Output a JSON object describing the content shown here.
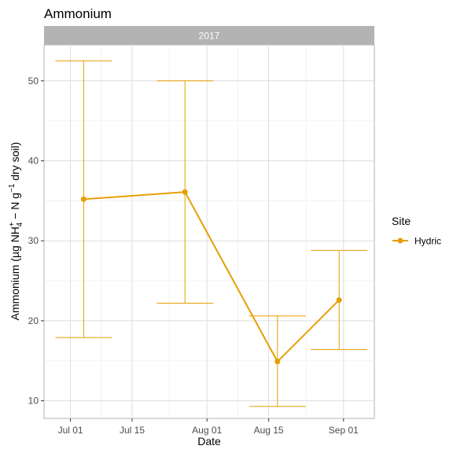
{
  "chart_data": {
    "type": "line",
    "title": "Ammonium",
    "facet": "2017",
    "xlabel": "Date",
    "ylabel": {
      "prefix": "Ammonium (µg NH",
      "nh_sup": "+",
      "nh_sub": "4",
      "mid": " − N g",
      "g_sup": "−1",
      "suffix": " dry soil)"
    },
    "x_axis": {
      "type": "date",
      "range": [
        "2017-06-25",
        "2017-09-08"
      ],
      "ticks": [
        {
          "date": "2017-07-01",
          "label": "Jul 01"
        },
        {
          "date": "2017-07-15",
          "label": "Jul 15"
        },
        {
          "date": "2017-08-01",
          "label": "Aug 01"
        },
        {
          "date": "2017-08-15",
          "label": "Aug 15"
        },
        {
          "date": "2017-09-01",
          "label": "Sep 01"
        }
      ]
    },
    "y_axis": {
      "range": [
        7.8,
        54.5
      ],
      "ticks": [
        10,
        20,
        30,
        40,
        50
      ]
    },
    "grid": true,
    "legend": {
      "title": "Site",
      "placement": "right"
    },
    "series": [
      {
        "name": "Hydric",
        "color": "#E69F00",
        "points": [
          {
            "date": "2017-07-04",
            "y": 35.2,
            "ymin": 17.9,
            "ymax": 52.5
          },
          {
            "date": "2017-07-27",
            "y": 36.1,
            "ymin": 22.2,
            "ymax": 50.0
          },
          {
            "date": "2017-08-17",
            "y": 14.9,
            "ymin": 9.3,
            "ymax": 20.6
          },
          {
            "date": "2017-08-31",
            "y": 22.6,
            "ymin": 16.4,
            "ymax": 28.8
          }
        ]
      }
    ]
  }
}
